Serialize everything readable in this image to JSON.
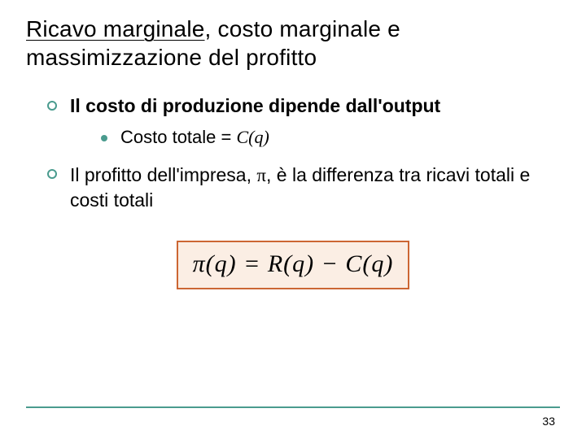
{
  "title_part1": "Ricavo marginale",
  "title_part2": ", costo marginale e massimizzazione del profitto",
  "bullet1": "Il costo di produzione dipende dall'output",
  "sub_prefix": "Costo totale = ",
  "sub_formula": "C(q)",
  "bullet2_a": "Il profitto dell'impresa, ",
  "bullet2_pi": "π",
  "bullet2_b": ", è la differenza tra ricavi totali e costi totali",
  "formula": "π(q) = R(q) − C(q)",
  "page_number": "33",
  "colors": {
    "accent": "#4a9b8e",
    "formula_border": "#cc6633",
    "formula_bg": "#fbeee4",
    "text": "#000000",
    "background": "#ffffff"
  }
}
